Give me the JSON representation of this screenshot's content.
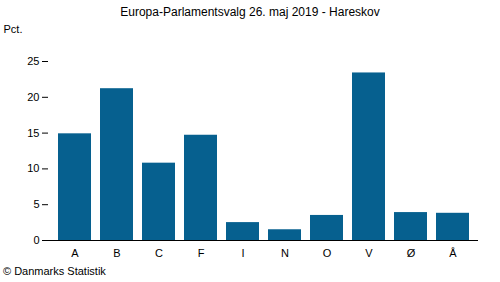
{
  "chart_data": {
    "type": "bar",
    "title": "Europa-Parlamentsvalg 26. maj 2019 - Hareskov",
    "y_label": "Pct.",
    "caption": "© Danmarks Statistik",
    "categories": [
      "A",
      "B",
      "C",
      "F",
      "I",
      "N",
      "O",
      "V",
      "Ø",
      "Å"
    ],
    "values": [
      14.9,
      21.2,
      10.8,
      14.7,
      2.5,
      1.5,
      3.5,
      23.4,
      3.9,
      3.8
    ],
    "color": "#06608f",
    "ylim": [
      0,
      25
    ],
    "yticks": [
      0,
      5,
      10,
      15,
      20,
      25
    ],
    "grid": false
  }
}
